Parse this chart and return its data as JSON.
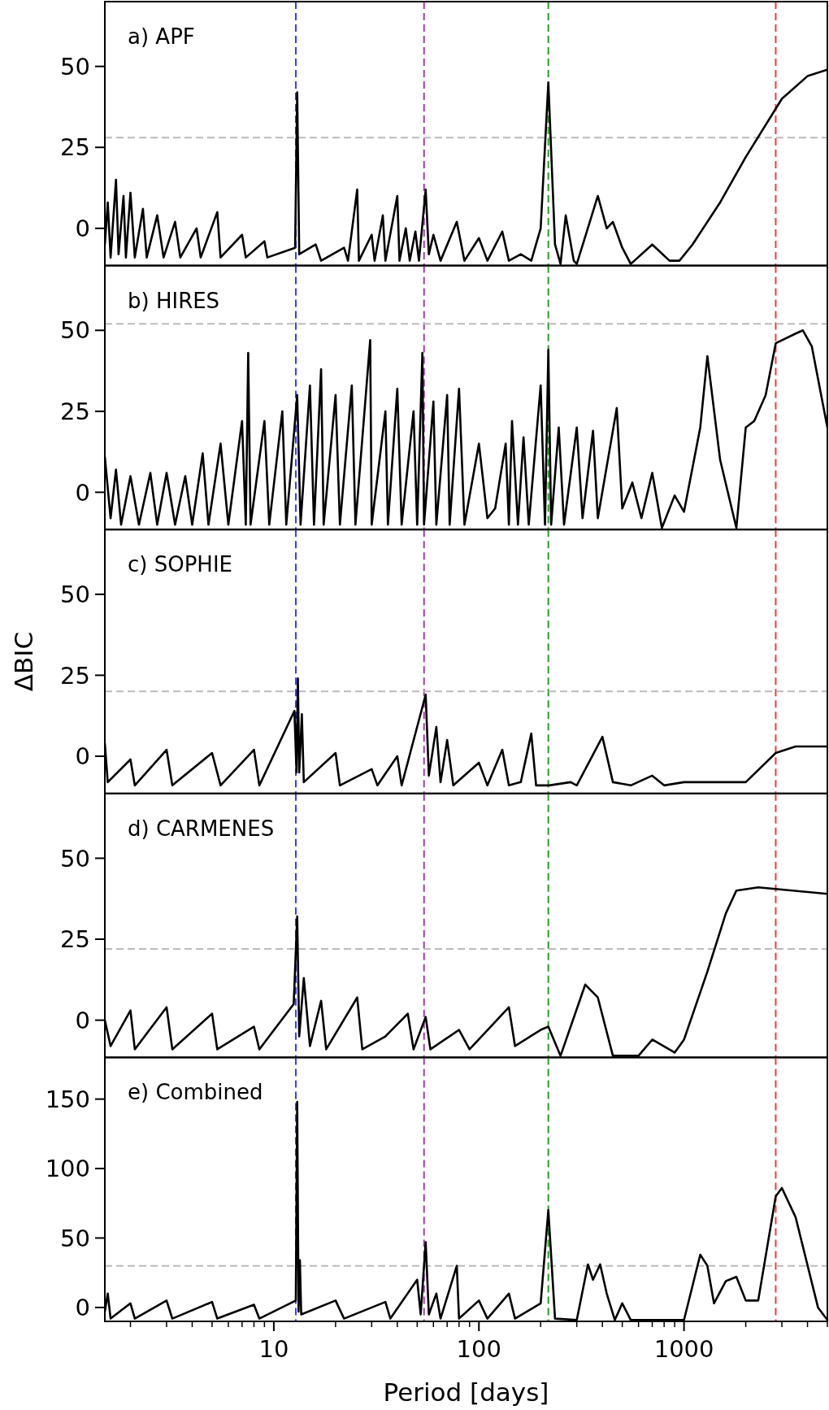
{
  "chart_data": [
    {
      "type": "line",
      "title": "a) APF",
      "log": "x",
      "xlim": [
        1.5,
        5000
      ],
      "ylim": [
        -11.5,
        70
      ],
      "yticks": [
        0,
        25,
        50
      ],
      "tick_labels": "y",
      "series": [
        {
          "color": "#000000",
          "x": [
            1.5,
            1.55,
            1.6,
            1.7,
            1.75,
            1.85,
            1.9,
            2.0,
            2.1,
            2.3,
            2.4,
            2.7,
            2.9,
            3.3,
            3.5,
            4.2,
            4.4,
            5.3,
            5.5,
            7.0,
            7.3,
            9.0,
            9.3,
            12.7,
            13.0,
            13.3,
            16,
            17,
            22,
            23,
            25.5,
            26,
            30,
            31,
            34,
            35,
            40,
            41,
            44,
            46,
            49,
            51,
            55,
            57,
            60,
            65,
            78,
            85,
            100,
            110,
            130,
            140,
            160,
            180,
            200,
            218,
            235,
            250,
            265,
            290,
            300,
            380,
            420,
            450,
            500,
            550,
            700,
            850,
            950,
            1100,
            1500,
            2000,
            3000,
            4000,
            5000
          ],
          "values": [
            -5,
            8,
            -9,
            15,
            -8,
            10,
            -9,
            11,
            -9,
            6,
            -9,
            4,
            -9,
            2,
            -9,
            0,
            -9,
            5,
            -9,
            -2,
            -9,
            -4,
            -9,
            -6,
            42,
            -8,
            -5,
            -10,
            -6,
            -10,
            12,
            -10,
            -2,
            -10,
            4,
            -10,
            10,
            -10,
            0,
            -10,
            -1,
            -10,
            12,
            -8,
            -2,
            -10,
            2,
            -10,
            -3,
            -10,
            -1,
            -10,
            -8,
            -10,
            0,
            45,
            -5,
            -11,
            4,
            -10,
            -11,
            10,
            0,
            2,
            -6,
            -11,
            -5,
            -10,
            -10,
            -5,
            8,
            22,
            40,
            47,
            49
          ]
        }
      ],
      "ref_lines": [
        {
          "axis": "x",
          "value": 12.8,
          "color": "#3b3bf0",
          "line_style": "dashed"
        },
        {
          "axis": "x",
          "value": 54,
          "color": "#a040a8",
          "line_style": "dashed"
        },
        {
          "axis": "x",
          "value": 218,
          "color": "#2a9a2a",
          "line_style": "dashed"
        },
        {
          "axis": "x",
          "value": 2800,
          "color": "#f03c3c",
          "line_style": "dashed"
        },
        {
          "axis": "y",
          "value": 28,
          "color": "#bbbbbb",
          "line_style": "dashed"
        }
      ]
    },
    {
      "type": "line",
      "title": "b) HIRES",
      "log": "x",
      "xlim": [
        1.5,
        5000
      ],
      "ylim": [
        -11.5,
        70
      ],
      "yticks": [
        0,
        25,
        50
      ],
      "tick_labels": "y",
      "series": [
        {
          "color": "#000000",
          "x": [
            1.5,
            1.6,
            1.7,
            1.8,
            2,
            2.2,
            2.5,
            2.7,
            3,
            3.3,
            3.7,
            4,
            4.5,
            4.8,
            5.5,
            6,
            7,
            7.3,
            7.5,
            7.7,
            9,
            9.5,
            11,
            11.5,
            13,
            13.5,
            15,
            15.7,
            17,
            17.5,
            20,
            21,
            24,
            25,
            29.5,
            30,
            35,
            36,
            40,
            42,
            48,
            50,
            53,
            54,
            60,
            62,
            70,
            72,
            80,
            85,
            100,
            110,
            120,
            135,
            140,
            145,
            155,
            165,
            175,
            200,
            210,
            218,
            225,
            245,
            260,
            300,
            320,
            360,
            380,
            470,
            500,
            560,
            620,
            700,
            780,
            900,
            1000,
            1200,
            1300,
            1500,
            1800,
            2000,
            2200,
            2500,
            2800,
            3500,
            3800,
            4200,
            5000
          ],
          "values": [
            11,
            -8,
            7,
            -10,
            5,
            -10,
            6,
            -10,
            6,
            -10,
            5,
            -10,
            12,
            -10,
            15,
            -10,
            22,
            -10,
            43,
            -10,
            22,
            -10,
            25,
            -10,
            30,
            -10,
            33,
            -10,
            38,
            -10,
            30,
            -10,
            33,
            -10,
            47,
            -10,
            25,
            -10,
            32,
            -10,
            25,
            -10,
            43,
            -10,
            28,
            -10,
            30,
            -10,
            32,
            -10,
            15,
            -8,
            -5,
            15,
            -10,
            22,
            -10,
            17,
            -10,
            33,
            -10,
            44,
            -10,
            20,
            -10,
            20,
            -8,
            19,
            -8,
            26,
            -5,
            3,
            -8,
            6,
            -11,
            -1,
            -6,
            20,
            42,
            10,
            -11,
            20,
            22,
            30,
            46,
            49,
            50,
            45,
            20
          ]
        }
      ],
      "ref_lines": [
        {
          "axis": "x",
          "value": 12.8,
          "color": "#3b3bf0",
          "line_style": "dashed"
        },
        {
          "axis": "x",
          "value": 54,
          "color": "#a040a8",
          "line_style": "dashed"
        },
        {
          "axis": "x",
          "value": 218,
          "color": "#2a9a2a",
          "line_style": "dashed"
        },
        {
          "axis": "x",
          "value": 2800,
          "color": "#f03c3c",
          "line_style": "dashed"
        },
        {
          "axis": "y",
          "value": 52,
          "color": "#bbbbbb",
          "line_style": "dashed"
        }
      ]
    },
    {
      "type": "line",
      "title": "c) SOPHIE",
      "ylabel": "ΔBIC",
      "log": "x",
      "xlim": [
        1.5,
        5000
      ],
      "ylim": [
        -11.5,
        70
      ],
      "yticks": [
        0,
        25,
        50
      ],
      "tick_labels": "y",
      "series": [
        {
          "color": "#000000",
          "x": [
            1.5,
            1.55,
            2,
            2.1,
            3,
            3.2,
            5,
            5.5,
            8,
            8.5,
            12.6,
            12.9,
            13.1,
            13.3,
            13.7,
            14,
            20,
            21,
            30,
            32,
            40,
            42,
            55,
            57,
            62,
            65,
            70,
            75,
            100,
            110,
            130,
            140,
            160,
            180,
            190,
            220,
            280,
            300,
            400,
            450,
            550,
            700,
            800,
            1000,
            1500,
            2000,
            2800,
            3500,
            5000
          ],
          "values": [
            4,
            -8,
            -1,
            -9,
            2,
            -9,
            1,
            -9,
            2,
            -9,
            14,
            -5,
            24,
            -5,
            13,
            -8,
            1,
            -9,
            -4,
            -9,
            0,
            -9,
            19,
            -6,
            9,
            -8,
            5,
            -9,
            -2,
            -9,
            2,
            -9,
            -8,
            7,
            -9,
            -9,
            -8,
            -9,
            6,
            -8,
            -9,
            -6,
            -9,
            -8,
            -8,
            -8,
            1,
            3,
            3
          ]
        }
      ],
      "ref_lines": [
        {
          "axis": "x",
          "value": 12.8,
          "color": "#3b3bf0",
          "line_style": "dashed"
        },
        {
          "axis": "x",
          "value": 54,
          "color": "#a040a8",
          "line_style": "dashed"
        },
        {
          "axis": "x",
          "value": 218,
          "color": "#2a9a2a",
          "line_style": "dashed"
        },
        {
          "axis": "x",
          "value": 2800,
          "color": "#f03c3c",
          "line_style": "dashed"
        },
        {
          "axis": "y",
          "value": 20,
          "color": "#bbbbbb",
          "line_style": "dashed"
        }
      ]
    },
    {
      "type": "line",
      "title": "d) CARMENES",
      "log": "x",
      "xlim": [
        1.5,
        5000
      ],
      "ylim": [
        -11.5,
        70
      ],
      "yticks": [
        0,
        25,
        50
      ],
      "tick_labels": "y",
      "series": [
        {
          "color": "#000000",
          "x": [
            1.5,
            1.6,
            2,
            2.1,
            3,
            3.2,
            5,
            5.3,
            8,
            8.5,
            12.5,
            13,
            13.3,
            14,
            15,
            17,
            18,
            25.5,
            27,
            35,
            45,
            48,
            55,
            58,
            80,
            90,
            140,
            150,
            200,
            218,
            250,
            330,
            380,
            450,
            600,
            700,
            900,
            1000,
            1300,
            1600,
            1800,
            2300,
            5000
          ],
          "values": [
            0,
            -8,
            3,
            -9,
            4,
            -9,
            2,
            -9,
            -2,
            -9,
            5,
            32,
            -5,
            13,
            -8,
            6,
            -9,
            7,
            -9,
            -5,
            2,
            -9,
            1,
            -9,
            -3,
            -9,
            4,
            -8,
            -3,
            -2,
            -11,
            11,
            7,
            -11,
            -11,
            -6,
            -10,
            -6,
            15,
            33,
            40,
            41,
            39
          ]
        }
      ],
      "ref_lines": [
        {
          "axis": "x",
          "value": 12.8,
          "color": "#3b3bf0",
          "line_style": "dashed"
        },
        {
          "axis": "x",
          "value": 54,
          "color": "#a040a8",
          "line_style": "dashed"
        },
        {
          "axis": "x",
          "value": 218,
          "color": "#2a9a2a",
          "line_style": "dashed"
        },
        {
          "axis": "x",
          "value": 2800,
          "color": "#f03c3c",
          "line_style": "dashed"
        },
        {
          "axis": "y",
          "value": 22,
          "color": "#bbbbbb",
          "line_style": "dashed"
        }
      ]
    },
    {
      "type": "line",
      "title": "e) Combined",
      "xlabel": "Period [days]",
      "log": "x",
      "xlim": [
        1.5,
        5000
      ],
      "ylim": [
        -10,
        180
      ],
      "yticks": [
        0,
        50,
        100,
        150
      ],
      "xticks": [
        {
          "value": 2,
          "label": null
        },
        {
          "value": 3,
          "label": null
        },
        {
          "value": 4,
          "label": null
        },
        {
          "value": 5,
          "label": null
        },
        {
          "value": 6,
          "label": null
        },
        {
          "value": 7,
          "label": null
        },
        {
          "value": 8,
          "label": null
        },
        {
          "value": 9,
          "label": null
        },
        10,
        {
          "value": 20,
          "label": null
        },
        {
          "value": 30,
          "label": null
        },
        {
          "value": 40,
          "label": null
        },
        {
          "value": 50,
          "label": null
        },
        {
          "value": 60,
          "label": null
        },
        {
          "value": 70,
          "label": null
        },
        {
          "value": 80,
          "label": null
        },
        {
          "value": 90,
          "label": null
        },
        100,
        {
          "value": 200,
          "label": null
        },
        {
          "value": 300,
          "label": null
        },
        {
          "value": 400,
          "label": null
        },
        {
          "value": 500,
          "label": null
        },
        {
          "value": 600,
          "label": null
        },
        {
          "value": 700,
          "label": null
        },
        {
          "value": 800,
          "label": null
        },
        {
          "value": 900,
          "label": null
        },
        1000,
        {
          "value": 2000,
          "label": null
        },
        {
          "value": 3000,
          "label": null
        },
        {
          "value": 4000,
          "label": null
        },
        {
          "value": 5000,
          "label": null
        }
      ],
      "series": [
        {
          "color": "#000000",
          "x": [
            1.5,
            1.55,
            1.6,
            2,
            2.1,
            3,
            3.2,
            5,
            5.3,
            8,
            8.5,
            12.8,
            13.0,
            13.2,
            13.4,
            13.6,
            20,
            22,
            35,
            37,
            50,
            52,
            55,
            57,
            62,
            65,
            78,
            80,
            100,
            110,
            140,
            150,
            200,
            218,
            235,
            300,
            340,
            360,
            390,
            420,
            460,
            500,
            550,
            800,
            1000,
            1200,
            1300,
            1400,
            1600,
            1800,
            2000,
            2300,
            2800,
            3000,
            3500,
            4500,
            5000
          ],
          "values": [
            -3,
            10,
            -8,
            3,
            -8,
            5,
            -8,
            4,
            -8,
            2,
            -8,
            5,
            148,
            -3,
            34,
            -5,
            5,
            -8,
            4,
            -8,
            20,
            -5,
            47,
            -5,
            10,
            -8,
            30,
            -8,
            5,
            -8,
            10,
            -8,
            3,
            70,
            -8,
            -9,
            31,
            20,
            31,
            10,
            -9,
            3,
            -9,
            -9,
            -9,
            38,
            30,
            3,
            19,
            22,
            5,
            5,
            80,
            86,
            65,
            0,
            -9
          ]
        }
      ],
      "ref_lines": [
        {
          "axis": "x",
          "value": 12.8,
          "color": "#3b3bf0",
          "line_style": "dashed"
        },
        {
          "axis": "x",
          "value": 54,
          "color": "#a040a8",
          "line_style": "dashed"
        },
        {
          "axis": "x",
          "value": 218,
          "color": "#2a9a2a",
          "line_style": "dashed"
        },
        {
          "axis": "x",
          "value": 2800,
          "color": "#f03c3c",
          "line_style": "dashed"
        },
        {
          "axis": "y",
          "value": 30,
          "color": "#bbbbbb",
          "line_style": "dashed"
        }
      ]
    }
  ]
}
